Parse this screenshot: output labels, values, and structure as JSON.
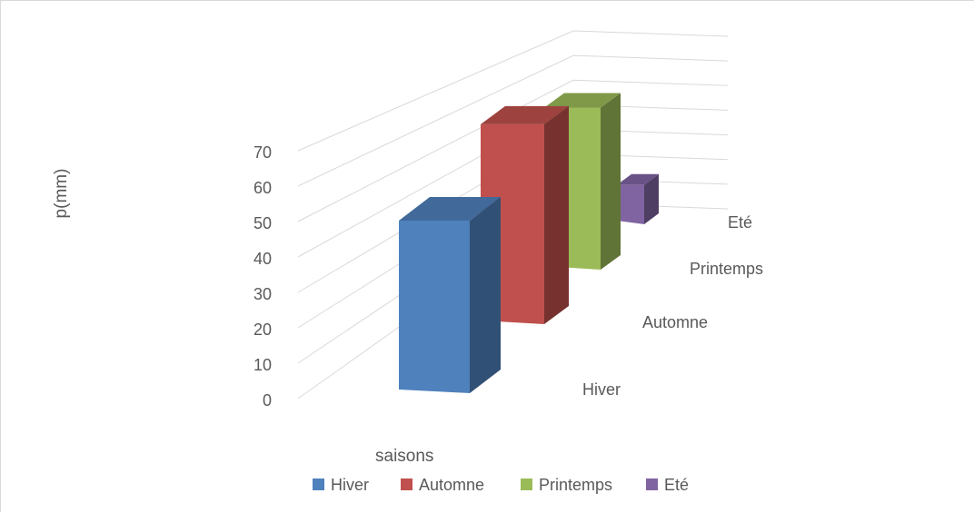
{
  "chart_data": {
    "type": "bar",
    "subtype": "3d-column",
    "title": "",
    "xlabel": "saisons",
    "ylabel": "p(mm)",
    "ylim": [
      0,
      70
    ],
    "yticks": [
      "0",
      "10",
      "20",
      "30",
      "40",
      "50",
      "60",
      "70"
    ],
    "grid": true,
    "legend_position": "bottom",
    "categories": [
      "Hiver",
      "Automne",
      "Printemps",
      "Eté"
    ],
    "values": [
      50,
      62,
      51,
      12
    ],
    "colors": [
      "#4f81bd",
      "#c0504d",
      "#9bbb59",
      "#8064a2"
    ]
  }
}
